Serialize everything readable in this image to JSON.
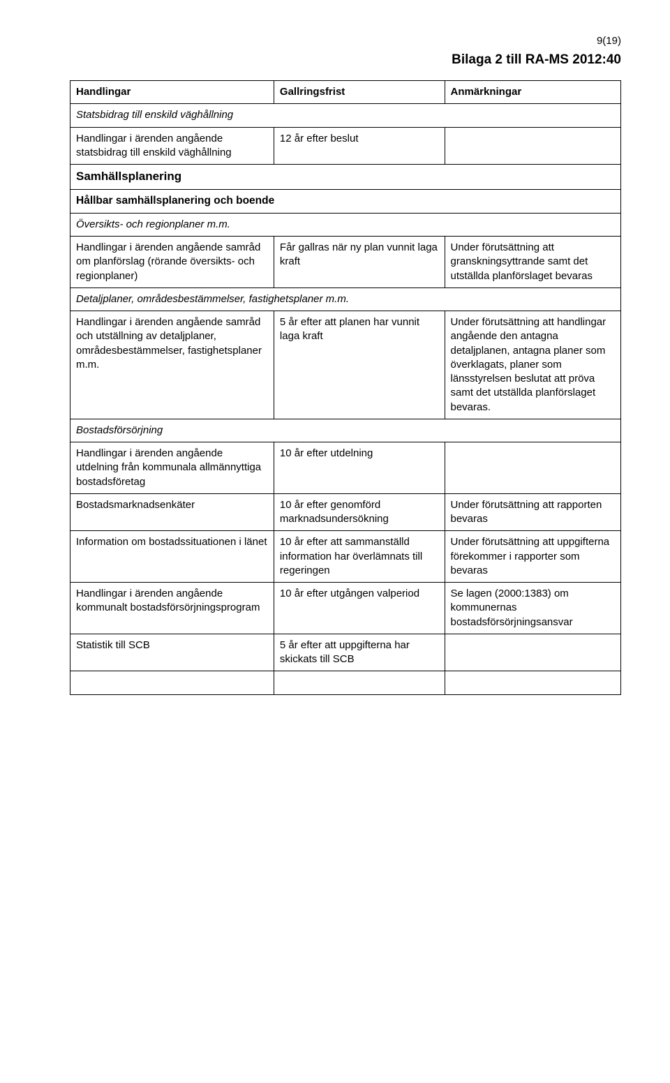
{
  "page_number": "9(19)",
  "doc_title": "Bilaga 2 till RA-MS 2012:40",
  "header": {
    "col1": "Handlingar",
    "col2": "Gallringsfrist",
    "col3": "Anmärkningar"
  },
  "sections": {
    "statsbidrag_title": "Statsbidrag till enskild väghållning",
    "statsbidrag_row": {
      "c1": "Handlingar i ärenden angående statsbidrag till enskild väghållning",
      "c2": "12 år efter beslut",
      "c3": ""
    },
    "samhallsplanering_title": "Samhällsplanering",
    "hallbar_title": "Hållbar samhällsplanering och boende",
    "oversikts_title": "Översikts- och regionplaner m.m.",
    "oversikts_row": {
      "c1": "Handlingar i ärenden angående samråd om planförslag (rörande översikts- och regionplaner)",
      "c2": "Får gallras när ny plan vunnit laga kraft",
      "c3": "Under förutsättning att granskningsyttrande samt det utställda planförslaget bevaras"
    },
    "detaljplaner_title": "Detaljplaner, områdesbestämmelser, fastighetsplaner m.m.",
    "detaljplaner_row": {
      "c1": "Handlingar i ärenden angående samråd och utställning av detaljplaner, områdesbestämmelser, fastighetsplaner m.m.",
      "c2": "5 år efter att planen har vunnit laga kraft",
      "c3": "Under förutsättning att handlingar angående den antagna detaljplanen, antagna planer som överklagats, planer som länsstyrelsen beslutat att pröva samt det utställda planförslaget bevaras."
    },
    "bostad_title": "Bostadsförsörjning",
    "bostad_rows": [
      {
        "c1": "Handlingar i ärenden angående utdelning från kommunala allmännyttiga bostadsföretag",
        "c2": "10 år efter utdelning",
        "c3": ""
      },
      {
        "c1": "Bostadsmarknadsenkäter",
        "c2": "10 år efter genomförd marknadsundersökning",
        "c3": "Under förutsättning att rapporten bevaras"
      },
      {
        "c1": "Information om bostadssituationen i länet",
        "c2": "10 år efter att sammanställd information har överlämnats till regeringen",
        "c3": "Under förutsättning att uppgifterna förekommer i rapporter som bevaras"
      },
      {
        "c1": "Handlingar i ärenden angående kommunalt bostadsförsörjningsprogram",
        "c2": "10 år efter utgången valperiod",
        "c3": "Se lagen (2000:1383) om kommunernas bostadsförsörjningsansvar"
      },
      {
        "c1": "Statistik till SCB",
        "c2": "5 år efter att uppgifterna har skickats till SCB",
        "c3": ""
      }
    ]
  }
}
